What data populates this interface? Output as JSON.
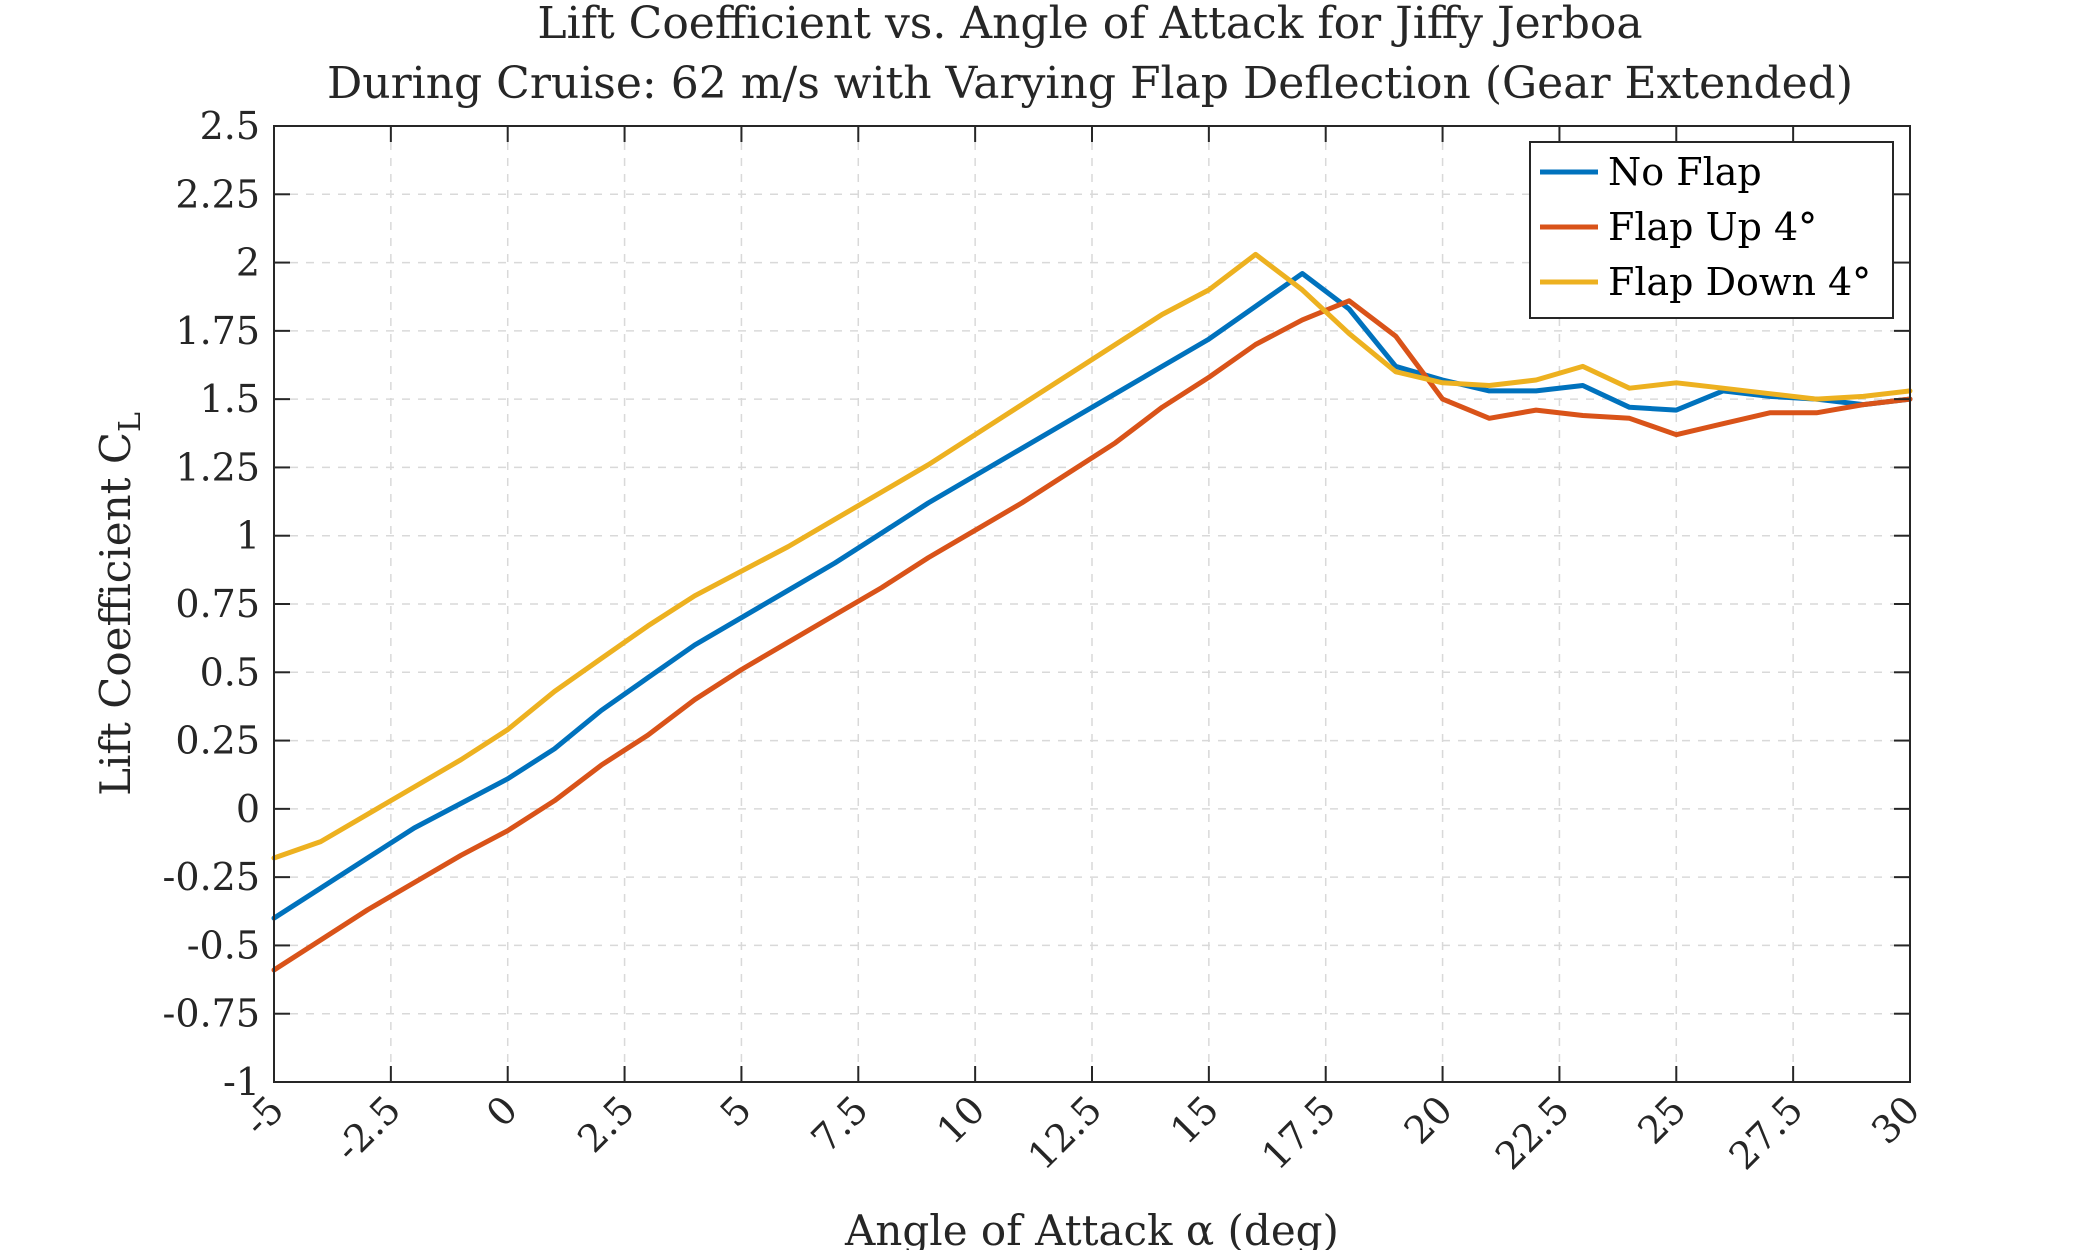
{
  "chart_data": {
    "type": "line",
    "title": "Lift Coefficient vs. Angle of Attack for Jiffy Jerboa",
    "subtitle": "During Cruise: 62 m/s with Varying Flap Deflection (Gear Extended)",
    "xlabel": "Angle of Attack α (deg)",
    "ylabel_text": "Lift Coefficient C",
    "ylabel_subscript": "L",
    "xlim": [
      -5,
      30
    ],
    "ylim": [
      -1,
      2.5
    ],
    "xticks": [
      -5,
      -2.5,
      0,
      2.5,
      5,
      7.5,
      10,
      12.5,
      15,
      17.5,
      20,
      22.5,
      25,
      27.5,
      30
    ],
    "xtick_labels": [
      "-5",
      "-2.5",
      "0",
      "2.5",
      "5",
      "7.5",
      "10",
      "12.5",
      "15",
      "17.5",
      "20",
      "22.5",
      "25",
      "27.5",
      "30"
    ],
    "yticks": [
      -1,
      -0.75,
      -0.5,
      -0.25,
      0,
      0.25,
      0.5,
      0.75,
      1,
      1.25,
      1.5,
      1.75,
      2,
      2.25,
      2.5
    ],
    "ytick_labels": [
      "-1",
      "-0.75",
      "-0.5",
      "-0.25",
      "0",
      "0.25",
      "0.5",
      "0.75",
      "1",
      "1.25",
      "1.5",
      "1.75",
      "2",
      "2.25",
      "2.5"
    ],
    "grid": true,
    "legend_position": "top-right",
    "x": [
      -5,
      -4,
      -3,
      -2,
      -1,
      0,
      1,
      2,
      3,
      4,
      5,
      6,
      7,
      8,
      9,
      10,
      11,
      12,
      13,
      14,
      15,
      16,
      17,
      18,
      19,
      20,
      21,
      22,
      23,
      24,
      25,
      26,
      27,
      28,
      29,
      30
    ],
    "series": [
      {
        "name": "No Flap",
        "color": "#0072BD",
        "values": [
          -0.4,
          -0.29,
          -0.18,
          -0.07,
          0.02,
          0.11,
          0.22,
          0.36,
          0.48,
          0.6,
          0.7,
          0.8,
          0.9,
          1.01,
          1.12,
          1.22,
          1.32,
          1.42,
          1.52,
          1.62,
          1.72,
          1.84,
          1.96,
          1.83,
          1.62,
          1.57,
          1.53,
          1.53,
          1.55,
          1.47,
          1.46,
          1.53,
          1.51,
          1.5,
          1.48,
          1.5
        ]
      },
      {
        "name": "Flap Up 4°",
        "color": "#D95319",
        "values": [
          -0.59,
          -0.48,
          -0.37,
          -0.27,
          -0.17,
          -0.08,
          0.03,
          0.16,
          0.27,
          0.4,
          0.51,
          0.61,
          0.71,
          0.81,
          0.92,
          1.02,
          1.12,
          1.23,
          1.34,
          1.47,
          1.58,
          1.7,
          1.79,
          1.86,
          1.73,
          1.5,
          1.43,
          1.46,
          1.44,
          1.43,
          1.37,
          1.41,
          1.45,
          1.45,
          1.48,
          1.5
        ]
      },
      {
        "name": "Flap Down 4°",
        "color": "#EDB120",
        "values": [
          -0.18,
          -0.12,
          -0.02,
          0.08,
          0.18,
          0.29,
          0.43,
          0.55,
          0.67,
          0.78,
          0.87,
          0.96,
          1.06,
          1.16,
          1.26,
          1.37,
          1.48,
          1.59,
          1.7,
          1.81,
          1.9,
          2.03,
          1.9,
          1.74,
          1.6,
          1.56,
          1.55,
          1.57,
          1.62,
          1.54,
          1.56,
          1.54,
          1.52,
          1.5,
          1.51,
          1.53
        ]
      }
    ]
  }
}
